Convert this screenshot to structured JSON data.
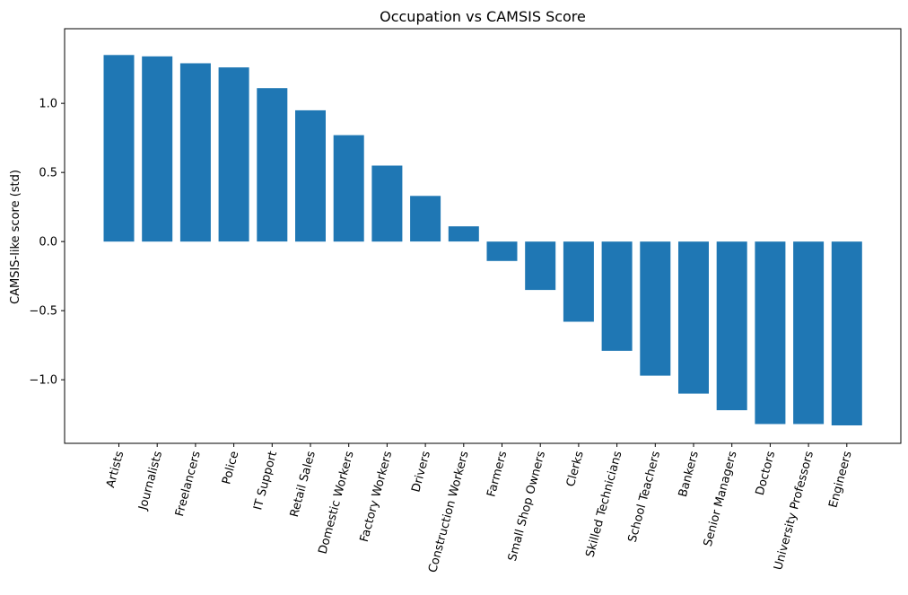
{
  "chart_data": {
    "type": "bar",
    "title": "Occupation vs CAMSIS Score",
    "xlabel": "",
    "ylabel": "CAMSIS-like score (std)",
    "ylim": [
      -1.46,
      1.54
    ],
    "yticks": [
      -1.0,
      -0.5,
      0.0,
      0.5,
      1.0
    ],
    "ytick_labels": [
      "−1.0",
      "−0.5",
      "0.0",
      "0.5",
      "1.0"
    ],
    "grid": false,
    "bar_color": "#1f77b4",
    "categories": [
      "Artists",
      "Journalists",
      "Freelancers",
      "Police",
      "IT Support",
      "Retail Sales",
      "Domestic Workers",
      "Factory Workers",
      "Drivers",
      "Construction Workers",
      "Farmers",
      "Small Shop Owners",
      "Clerks",
      "Skilled Technicians",
      "School Teachers",
      "Bankers",
      "Senior Managers",
      "Doctors",
      "University Professors",
      "Engineers"
    ],
    "values": [
      1.35,
      1.34,
      1.29,
      1.26,
      1.11,
      0.95,
      0.77,
      0.55,
      0.33,
      0.11,
      -0.14,
      -0.35,
      -0.58,
      -0.79,
      -0.97,
      -1.1,
      -1.22,
      -1.32,
      -1.32,
      -1.33
    ]
  }
}
